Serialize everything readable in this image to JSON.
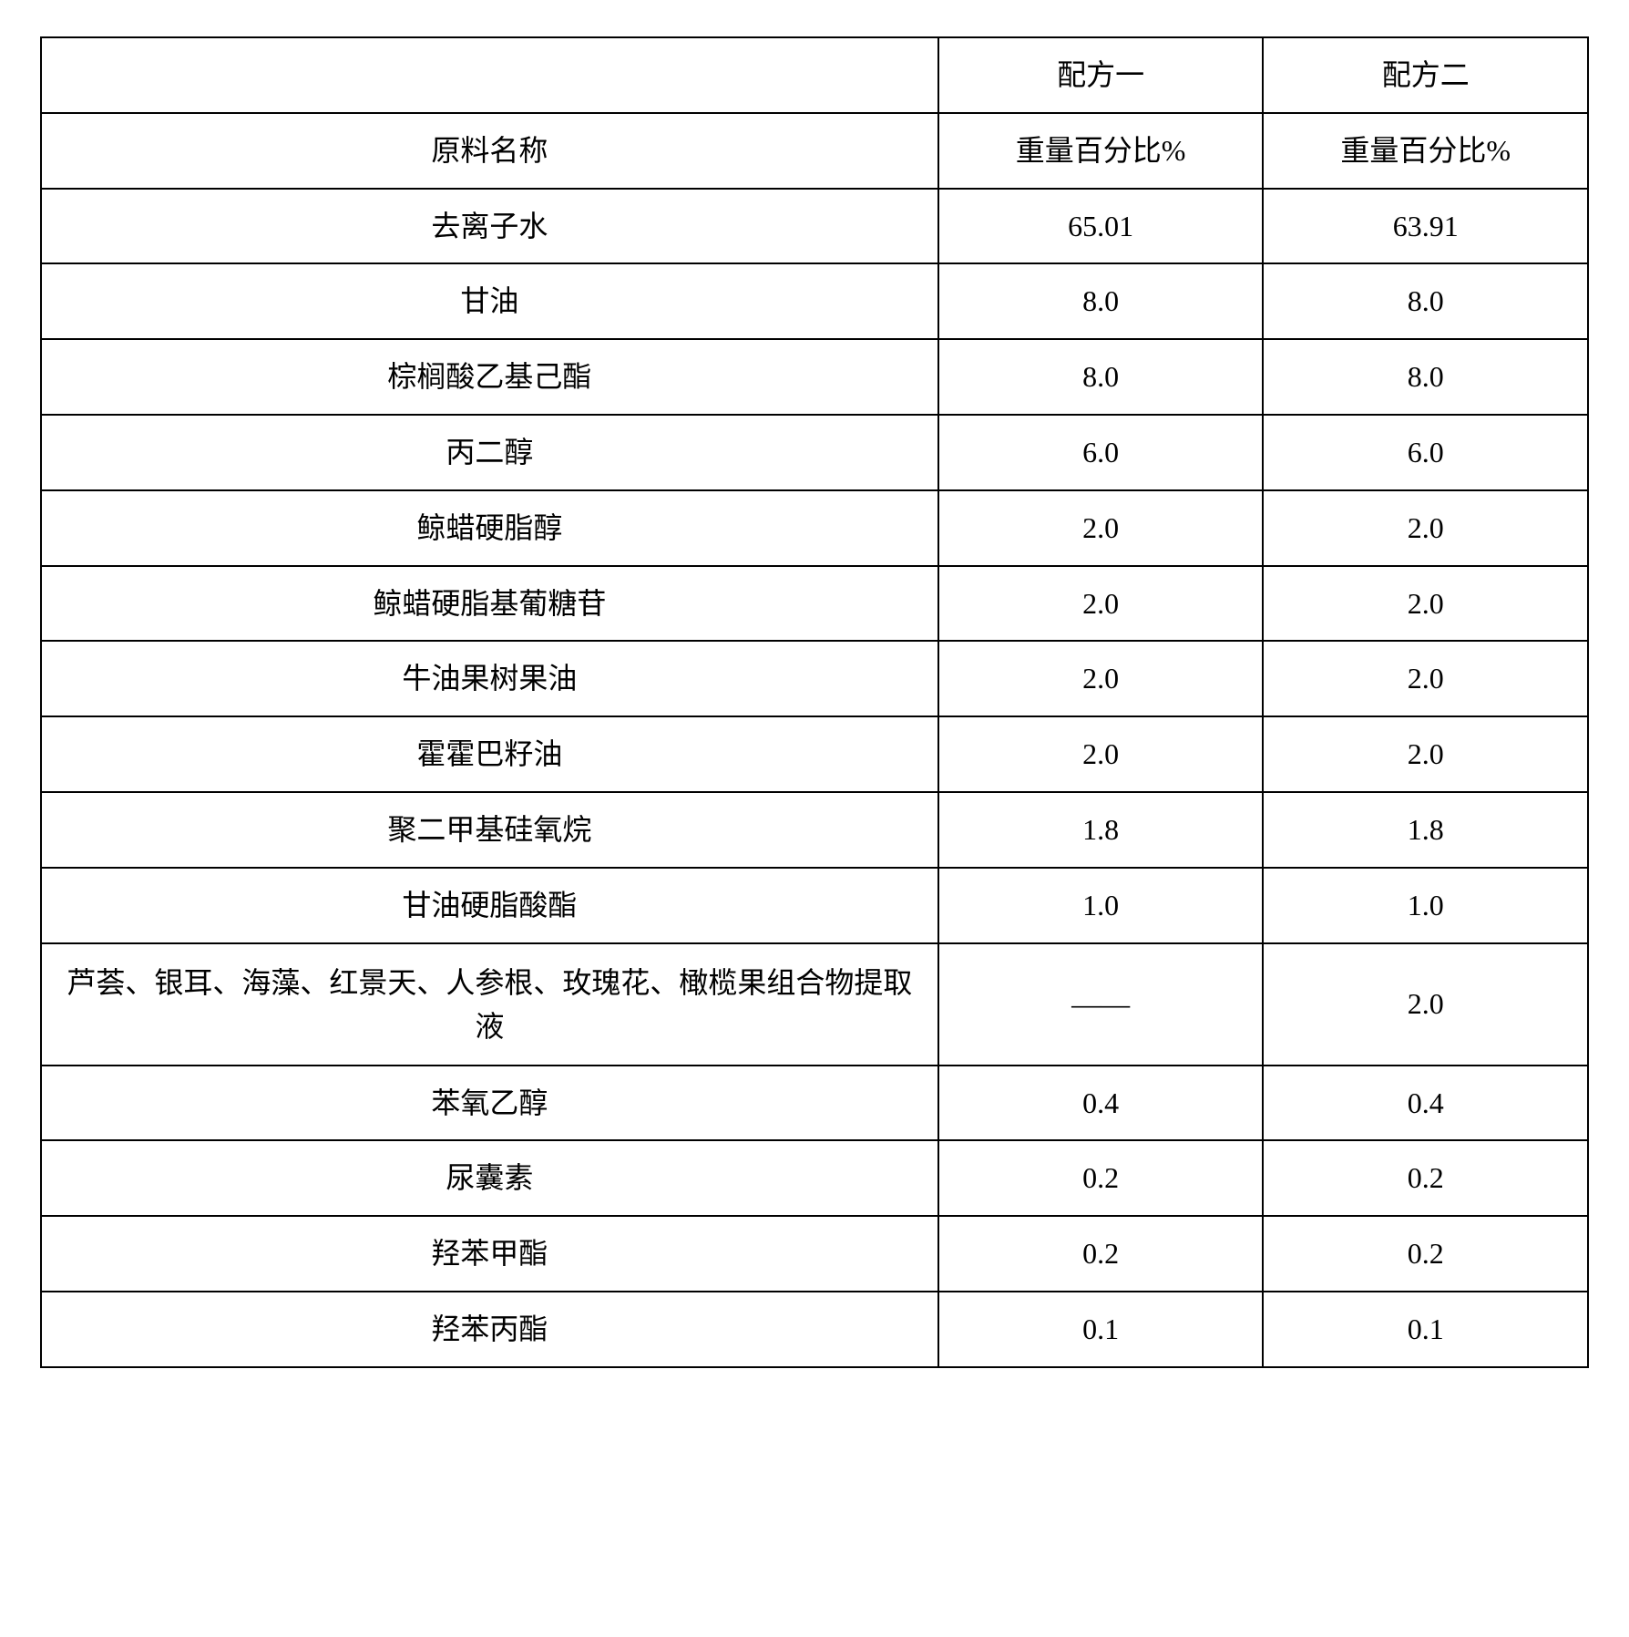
{
  "table": {
    "columns": [
      "",
      "配方一",
      "配方二"
    ],
    "subheaders": [
      "原料名称",
      "重量百分比%",
      "重量百分比%"
    ],
    "rows": [
      {
        "name": "去离子水",
        "v1": "65.01",
        "v2": "63.91"
      },
      {
        "name": "甘油",
        "v1": "8.0",
        "v2": "8.0"
      },
      {
        "name": "棕榈酸乙基己酯",
        "v1": "8.0",
        "v2": "8.0"
      },
      {
        "name": "丙二醇",
        "v1": "6.0",
        "v2": "6.0"
      },
      {
        "name": "鲸蜡硬脂醇",
        "v1": "2.0",
        "v2": "2.0"
      },
      {
        "name": "鲸蜡硬脂基葡糖苷",
        "v1": "2.0",
        "v2": "2.0"
      },
      {
        "name": "牛油果树果油",
        "v1": "2.0",
        "v2": "2.0"
      },
      {
        "name": "霍霍巴籽油",
        "v1": "2.0",
        "v2": "2.0"
      },
      {
        "name": "聚二甲基硅氧烷",
        "v1": "1.8",
        "v2": "1.8"
      },
      {
        "name": "甘油硬脂酸酯",
        "v1": "1.0",
        "v2": "1.0"
      },
      {
        "name": "芦荟、银耳、海藻、红景天、人参根、玫瑰花、橄榄果组合物提取液",
        "v1": "——",
        "v2": "2.0",
        "multiline": true
      },
      {
        "name": "苯氧乙醇",
        "v1": "0.4",
        "v2": "0.4"
      },
      {
        "name": "尿囊素",
        "v1": "0.2",
        "v2": "0.2"
      },
      {
        "name": "羟苯甲酯",
        "v1": "0.2",
        "v2": "0.2"
      },
      {
        "name": "羟苯丙酯",
        "v1": "0.1",
        "v2": "0.1"
      }
    ],
    "border_color": "#000000",
    "text_color": "#000000",
    "background_color": "#ffffff",
    "font_size": 32,
    "column_widths_pct": [
      58,
      21,
      21
    ]
  }
}
